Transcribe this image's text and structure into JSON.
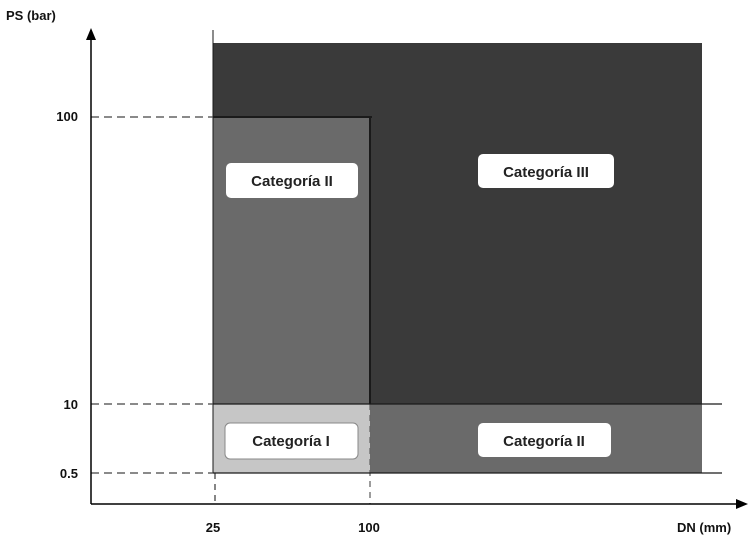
{
  "axes": {
    "y_label": "PS (bar)",
    "x_label": "DN (mm)",
    "y_ticks": [
      "100",
      "10",
      "0.5"
    ],
    "x_ticks": [
      "25",
      "100"
    ]
  },
  "regions": {
    "cat3_label": "Categoría III",
    "cat2_left_label": "Categoría II",
    "cat2_bottom_label": "Categoría II",
    "cat1_label": "Categoría I"
  },
  "colors": {
    "category_iii": "#3a3a3a",
    "category_ii": "#6a6a6a",
    "category_i": "#c6c6c6",
    "label_box": "#ffffff",
    "axis": "#000000"
  }
}
